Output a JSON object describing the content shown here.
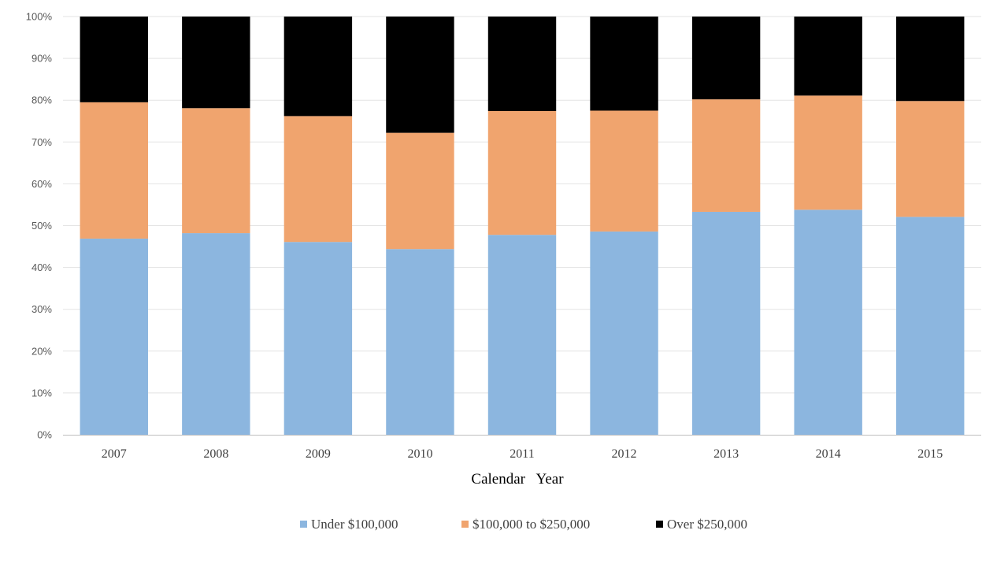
{
  "chart_data": {
    "type": "bar",
    "stacked": true,
    "percent_stacked": true,
    "title": "",
    "xlabel": "Calendar   Year",
    "ylabel": "",
    "ylim": [
      0,
      100
    ],
    "y_ticks": [
      "0%",
      "10%",
      "20%",
      "30%",
      "40%",
      "50%",
      "60%",
      "70%",
      "80%",
      "90%",
      "100%"
    ],
    "grid": true,
    "legend_position": "bottom",
    "categories": [
      "2007",
      "2008",
      "2009",
      "2010",
      "2011",
      "2012",
      "2013",
      "2014",
      "2015"
    ],
    "series": [
      {
        "name": "Under $100,000",
        "color": "#8cb6df",
        "values": [
          46.9,
          48.2,
          46.1,
          44.4,
          47.8,
          48.6,
          53.3,
          53.8,
          52.1
        ]
      },
      {
        "name": "$100,000 to $250,000",
        "color": "#f0a46e",
        "values": [
          32.6,
          29.9,
          30.1,
          27.8,
          29.6,
          28.9,
          26.9,
          27.3,
          27.7
        ]
      },
      {
        "name": "Over $250,000",
        "color": "#000000",
        "values": [
          20.5,
          21.9,
          23.8,
          27.8,
          22.6,
          22.5,
          19.8,
          18.9,
          20.2
        ]
      }
    ]
  }
}
